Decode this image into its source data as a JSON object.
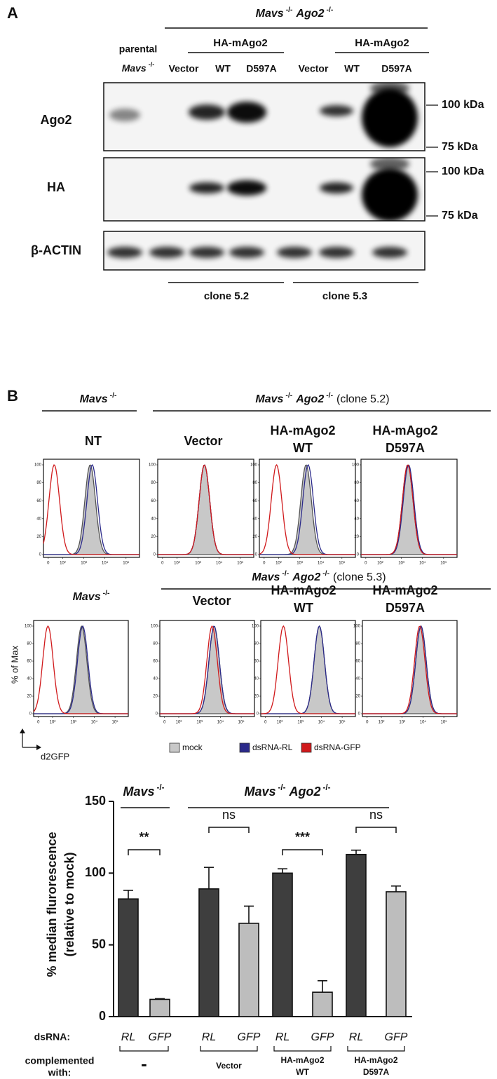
{
  "panel_a": {
    "label": "A",
    "gene1": "Mavs",
    "gene2": "Ago2",
    "ko": "-/-",
    "construct": "HA-mAgo2",
    "parental": "parental",
    "lanes": [
      "Vector",
      "WT",
      "D597A"
    ],
    "blots": [
      "Ago2",
      "HA",
      "β-ACTIN"
    ],
    "markers": [
      "100 kDa",
      "75 kDa"
    ],
    "clones": [
      "clone 5.2",
      "clone 5.3"
    ]
  },
  "panel_b": {
    "label": "B",
    "clone_suffix": [
      "(clone 5.2)",
      "(clone 5.3)"
    ],
    "titles": [
      "NT",
      "Vector",
      "HA-mAgo2",
      "WT",
      "D597A"
    ],
    "y_axis": "% of Max",
    "x_axis": "d2GFP",
    "legend": [
      "mock",
      "dsRNA-RL",
      "dsRNA-GFP"
    ],
    "legend_colors": [
      "#c8c8c8",
      "#2b2a8a",
      "#d0191b"
    ],
    "hist_yticks": [
      0,
      20,
      40,
      60,
      80,
      100
    ],
    "hist_xticks": [
      0,
      {
        "value": 100,
        "label": "10²"
      },
      {
        "value": 1000,
        "label": "10³"
      },
      {
        "value": 10000,
        "label": "10⁴"
      },
      {
        "value": 100000,
        "label": "10⁵"
      }
    ],
    "histograms": [
      {
        "peaks": [
          2000,
          2500,
          40
        ]
      },
      {
        "peaks": [
          2000,
          2000,
          2000
        ]
      },
      {
        "peaks": [
          2000,
          2500,
          80
        ]
      },
      {
        "peaks": [
          2000,
          2200,
          2000
        ]
      },
      {
        "peaks": [
          2500,
          2800,
          60
        ]
      },
      {
        "peaks": [
          5000,
          5000,
          4000
        ]
      },
      {
        "peaks": [
          8000,
          8000,
          150
        ]
      },
      {
        "peaks": [
          8000,
          8000,
          7000
        ]
      }
    ]
  },
  "chart_data": {
    "type": "bar",
    "y_label": [
      "% median flurorescence",
      "(relative to mock)"
    ],
    "categories": [
      "RL",
      "GFP",
      "RL",
      "GFP",
      "RL",
      "GFP",
      "RL",
      "GFP"
    ],
    "values": [
      82,
      12,
      89,
      65,
      100,
      17,
      113,
      87
    ],
    "errors": [
      6,
      0.5,
      15,
      12,
      3,
      8,
      3,
      4
    ],
    "colors": [
      "#3e3e3e",
      "#bdbdbd",
      "#3e3e3e",
      "#bdbdbd",
      "#3e3e3e",
      "#bdbdbd",
      "#3e3e3e",
      "#bdbdbd"
    ],
    "ylim": [
      0,
      150
    ],
    "yticks": [
      0,
      50,
      100,
      150
    ],
    "significance": [
      "**",
      "ns",
      "***",
      "ns"
    ],
    "row_labels": [
      "dsRNA:",
      "complemented",
      "with:"
    ],
    "groups": [
      [
        "-"
      ],
      [
        "Vector"
      ],
      [
        "HA-mAgo2",
        "WT"
      ],
      [
        "HA-mAgo2",
        "D597A"
      ]
    ]
  }
}
